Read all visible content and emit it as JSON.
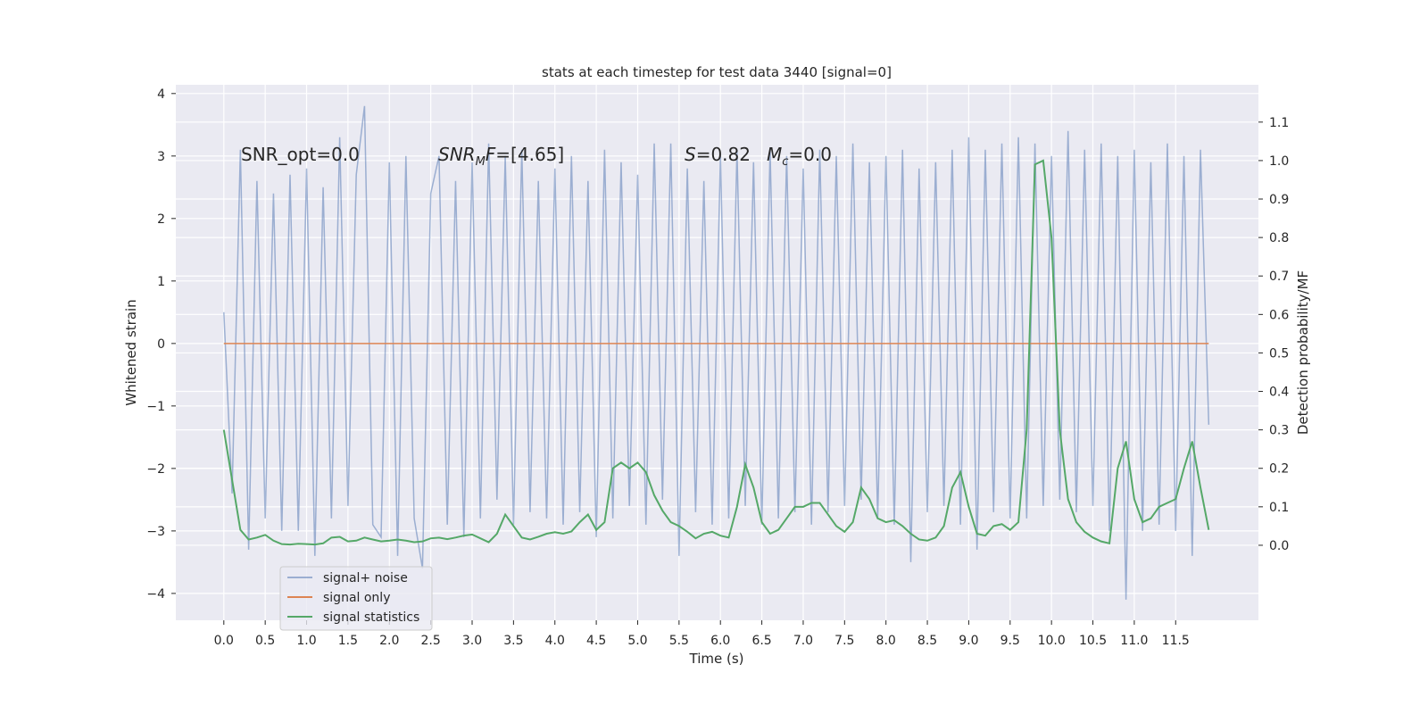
{
  "chart_data": {
    "type": "line",
    "title": "stats at each timestep for test data 3440 [signal=0]",
    "xlabel": "Time (s)",
    "ylabel": "Whitened strain",
    "y2label": "Detection probability/MF",
    "annotations": [
      [
        {
          "t": "SNR_opt=0.0"
        }
      ],
      [
        {
          "t": "SNR",
          "italic": true
        },
        {
          "t": "M",
          "italic": true,
          "sub": true
        },
        {
          "t": "F",
          "italic": true
        },
        {
          "t": "=[4.65]"
        }
      ],
      [
        {
          "t": "S",
          "italic": true
        },
        {
          "t": "=0.82"
        }
      ],
      [
        {
          "t": "M",
          "italic": true
        },
        {
          "t": "c",
          "italic": true,
          "sub": true
        },
        {
          "t": "=0.0"
        }
      ]
    ],
    "x": [
      0,
      0.1,
      0.2,
      0.3,
      0.4,
      0.5,
      0.6,
      0.7,
      0.8,
      0.9,
      1,
      1.1,
      1.2,
      1.3,
      1.4,
      1.5,
      1.6,
      1.7,
      1.8,
      1.9,
      2,
      2.1,
      2.2,
      2.3,
      2.4,
      2.5,
      2.6,
      2.7,
      2.8,
      2.9,
      3,
      3.1,
      3.2,
      3.3,
      3.4,
      3.5,
      3.6,
      3.7,
      3.8,
      3.9,
      4,
      4.1,
      4.2,
      4.3,
      4.4,
      4.5,
      4.6,
      4.7,
      4.8,
      4.9,
      5,
      5.1,
      5.2,
      5.3,
      5.4,
      5.5,
      5.6,
      5.7,
      5.8,
      5.9,
      6,
      6.1,
      6.2,
      6.3,
      6.4,
      6.5,
      6.6,
      6.7,
      6.8,
      6.9,
      7,
      7.1,
      7.2,
      7.3,
      7.4,
      7.5,
      7.6,
      7.7,
      7.8,
      7.9,
      8,
      8.1,
      8.2,
      8.3,
      8.4,
      8.5,
      8.6,
      8.7,
      8.8,
      8.9,
      9,
      9.1,
      9.2,
      9.3,
      9.4,
      9.5,
      9.6,
      9.7,
      9.8,
      9.9,
      10,
      10.1,
      10.2,
      10.3,
      10.4,
      10.5,
      10.6,
      10.7,
      10.8,
      10.9,
      11,
      11.1,
      11.2,
      11.3,
      11.4,
      11.5,
      11.6,
      11.7,
      11.8,
      11.9
    ],
    "series": [
      {
        "name": "signal+ noise",
        "color": "#4c72b0",
        "alpha": 0.5,
        "values": [
          0.5,
          -2.4,
          3.1,
          -3.3,
          2.6,
          -2.8,
          2.4,
          -3.0,
          2.7,
          -3.0,
          2.8,
          -3.4,
          2.5,
          -2.8,
          3.3,
          -2.6,
          2.7,
          3.8,
          -2.9,
          -3.1,
          2.9,
          -3.4,
          3.0,
          -2.8,
          -3.6,
          2.4,
          3.0,
          -2.9,
          2.6,
          -3.1,
          2.9,
          -2.8,
          3.2,
          -2.5,
          3.0,
          -2.9,
          3.1,
          -2.7,
          2.6,
          -2.8,
          2.8,
          -2.9,
          3.0,
          -2.7,
          2.6,
          -3.1,
          3.1,
          -2.8,
          2.9,
          -2.6,
          2.7,
          -2.9,
          3.2,
          -2.5,
          3.2,
          -3.4,
          2.8,
          -2.7,
          2.6,
          -2.9,
          3.0,
          -2.8,
          3.1,
          -2.6,
          2.9,
          -2.9,
          3.1,
          -2.8,
          3.0,
          -2.7,
          2.8,
          -2.9,
          3.1,
          -2.7,
          3.0,
          -2.6,
          3.2,
          -2.5,
          2.9,
          -2.8,
          3.0,
          -2.9,
          3.1,
          -3.5,
          2.8,
          -2.7,
          2.9,
          -2.6,
          3.1,
          -2.9,
          3.3,
          -3.3,
          3.1,
          -2.7,
          3.2,
          -2.8,
          3.3,
          -2.8,
          3.2,
          -2.6,
          3.0,
          -2.5,
          3.4,
          -2.7,
          3.1,
          -2.6,
          3.2,
          -3.0,
          3.0,
          -4.1,
          3.1,
          -3.0,
          2.9,
          -2.9,
          3.2,
          -3.0,
          3.0,
          -3.4,
          3.1,
          -1.3
        ]
      },
      {
        "name": "signal only",
        "color": "#dd8452",
        "values": [
          0,
          0,
          0,
          0,
          0,
          0,
          0,
          0,
          0,
          0,
          0,
          0,
          0,
          0,
          0,
          0,
          0,
          0,
          0,
          0,
          0,
          0,
          0,
          0,
          0,
          0,
          0,
          0,
          0,
          0,
          0,
          0,
          0,
          0,
          0,
          0,
          0,
          0,
          0,
          0,
          0,
          0,
          0,
          0,
          0,
          0,
          0,
          0,
          0,
          0,
          0,
          0,
          0,
          0,
          0,
          0,
          0,
          0,
          0,
          0,
          0,
          0,
          0,
          0,
          0,
          0,
          0,
          0,
          0,
          0,
          0,
          0,
          0,
          0,
          0,
          0,
          0,
          0,
          0,
          0,
          0,
          0,
          0,
          0,
          0,
          0,
          0,
          0,
          0,
          0,
          0,
          0,
          0,
          0,
          0,
          0,
          0,
          0,
          0,
          0,
          0,
          0,
          0,
          0,
          0,
          0,
          0,
          0,
          0,
          0,
          0,
          0,
          0,
          0,
          0,
          0,
          0,
          0,
          0,
          0
        ]
      },
      {
        "name": "signal statistics",
        "color": "#55a868",
        "axis": "y2",
        "values": [
          0.3,
          0.17,
          0.04,
          0.015,
          0.02,
          0.027,
          0.012,
          0.003,
          0.002,
          0.004,
          0.003,
          0.002,
          0.005,
          0.02,
          0.022,
          0.01,
          0.012,
          0.02,
          0.015,
          0.01,
          0.012,
          0.015,
          0.012,
          0.008,
          0.01,
          0.018,
          0.02,
          0.016,
          0.02,
          0.025,
          0.028,
          0.018,
          0.008,
          0.03,
          0.08,
          0.05,
          0.02,
          0.015,
          0.022,
          0.03,
          0.034,
          0.03,
          0.036,
          0.06,
          0.08,
          0.04,
          0.06,
          0.2,
          0.215,
          0.2,
          0.215,
          0.19,
          0.13,
          0.09,
          0.06,
          0.05,
          0.035,
          0.018,
          0.03,
          0.035,
          0.025,
          0.02,
          0.1,
          0.21,
          0.15,
          0.06,
          0.03,
          0.04,
          0.07,
          0.1,
          0.1,
          0.11,
          0.11,
          0.08,
          0.05,
          0.035,
          0.06,
          0.15,
          0.12,
          0.07,
          0.06,
          0.065,
          0.05,
          0.03,
          0.015,
          0.012,
          0.02,
          0.05,
          0.15,
          0.19,
          0.1,
          0.03,
          0.025,
          0.05,
          0.055,
          0.04,
          0.06,
          0.3,
          0.99,
          1.0,
          0.8,
          0.3,
          0.12,
          0.06,
          0.035,
          0.02,
          0.01,
          0.005,
          0.2,
          0.27,
          0.12,
          0.06,
          0.07,
          0.1,
          0.11,
          0.12,
          0.2,
          0.27,
          0.15,
          0.04
        ]
      }
    ],
    "xlim": [
      -0.58,
      12.5
    ],
    "xticks": [
      {
        "value": 0,
        "label": "0.0"
      },
      0.5,
      {
        "value": 1,
        "label": "1.0"
      },
      1.5,
      {
        "value": 2,
        "label": "2.0"
      },
      2.5,
      {
        "value": 3,
        "label": "3.0"
      },
      3.5,
      {
        "value": 4,
        "label": "4.0"
      },
      4.5,
      {
        "value": 5,
        "label": "5.0"
      },
      5.5,
      {
        "value": 6,
        "label": "6.0"
      },
      6.5,
      {
        "value": 7,
        "label": "7.0"
      },
      7.5,
      {
        "value": 8,
        "label": "8.0"
      },
      8.5,
      {
        "value": 9,
        "label": "9.0"
      },
      9.5,
      {
        "value": 10,
        "label": "10.0"
      },
      10.5,
      {
        "value": 11,
        "label": "11.0"
      },
      11.5
    ],
    "ylim": [
      -4.43,
      4.14
    ],
    "yticks": [
      {
        "value": -4,
        "label": "−4"
      },
      {
        "value": -3,
        "label": "−3"
      },
      {
        "value": -2,
        "label": "−2"
      },
      {
        "value": -1,
        "label": "−1"
      },
      0,
      1,
      2,
      3,
      4
    ],
    "y2lim": [
      -0.195,
      1.197
    ],
    "y2ticks": [
      {
        "value": 0,
        "label": "0.0"
      },
      0.1,
      0.2,
      0.3,
      0.4,
      0.5,
      0.6,
      0.7,
      0.8,
      0.9,
      {
        "value": 1,
        "label": "1.0"
      },
      1.1
    ],
    "grid": true,
    "legend": "lower left"
  }
}
